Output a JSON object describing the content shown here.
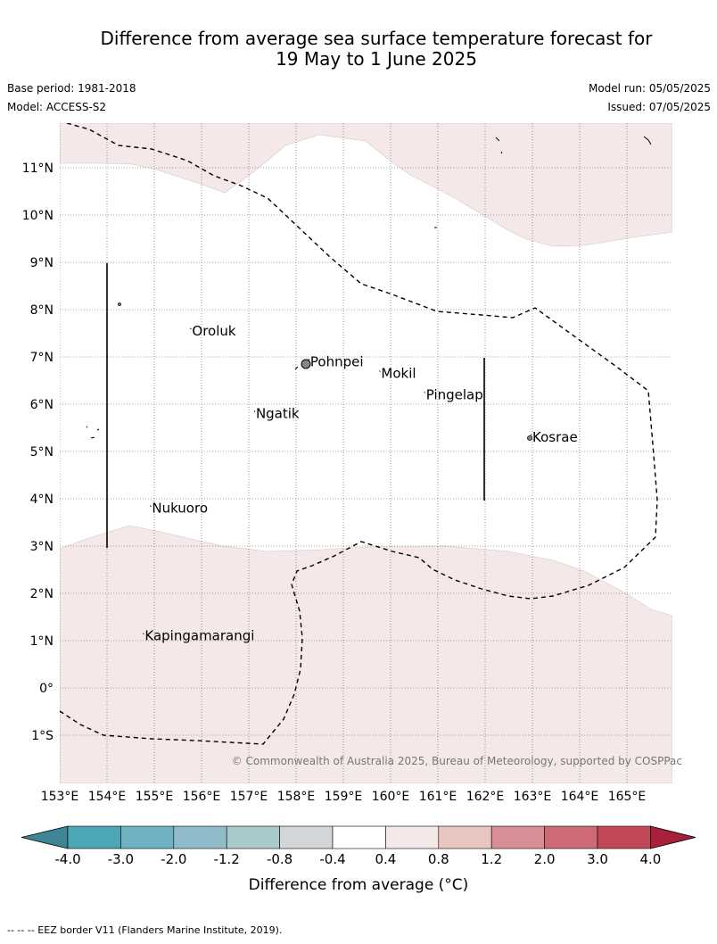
{
  "header": {
    "title_line1": "Difference from average sea surface temperature forecast for",
    "title_line2": "19 May to 1 June 2025",
    "base_period": "Base period: 1981-2018",
    "model": "Model: ACCESS-S2",
    "model_run": "Model run: 05/05/2025",
    "issued": "Issued: 07/05/2025"
  },
  "map": {
    "lon_ticks": [
      "153°E",
      "154°E",
      "155°E",
      "156°E",
      "157°E",
      "158°E",
      "159°E",
      "160°E",
      "161°E",
      "162°E",
      "163°E",
      "164°E",
      "165°E"
    ],
    "lat_ticks": [
      "11°N",
      "10°N",
      "9°N",
      "8°N",
      "7°N",
      "6°N",
      "5°N",
      "4°N",
      "3°N",
      "2°N",
      "1°N",
      "0°",
      "1°S"
    ],
    "places": [
      {
        "name": "Oroluk",
        "lon": 155.8,
        "lat": 7.55
      },
      {
        "name": "Pohnpei",
        "lon": 158.3,
        "lat": 6.9
      },
      {
        "name": "Mokil",
        "lon": 159.8,
        "lat": 6.65
      },
      {
        "name": "Pingelap",
        "lon": 160.75,
        "lat": 6.2
      },
      {
        "name": "Ngatik",
        "lon": 157.15,
        "lat": 5.8
      },
      {
        "name": "Kosrae",
        "lon": 163.0,
        "lat": 5.3
      },
      {
        "name": "Nukuoro",
        "lon": 154.95,
        "lat": 3.8
      },
      {
        "name": "Kapingamarangi",
        "lon": 154.8,
        "lat": 1.1
      }
    ],
    "copyright": "© Commonwealth of Australia 2025, Bureau of Meteorology, supported by COSPPac",
    "fill_color": "#f4e8e8"
  },
  "colorbar": {
    "colors": [
      "#3e8595",
      "#4ba6b6",
      "#6fb2c1",
      "#8fbcc8",
      "#aac9cc",
      "#d3d6d8",
      "#ffffff",
      "#f5e8e8",
      "#e9c5c2",
      "#d88e96",
      "#ce6a75",
      "#c14856",
      "#a8203a"
    ],
    "tick_labels": [
      "-4.0",
      "-3.0",
      "-2.0",
      "-1.2",
      "-0.8",
      "-0.4",
      "0.4",
      "0.8",
      "1.2",
      "2.0",
      "3.0",
      "4.0"
    ],
    "label": "Difference from average (°C)"
  },
  "footnote": "--  --  -- EEZ border V11 (Flanders Marine Institute, 2019)."
}
